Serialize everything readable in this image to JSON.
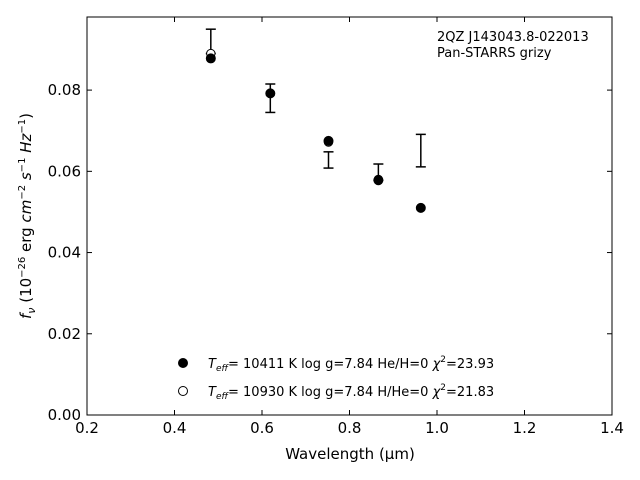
{
  "chart_data": {
    "type": "scatter",
    "xlabel": "Wavelength (μm)",
    "ylabel": "f_ν (10^-26 erg cm^-2 s^-1 Hz^-1)",
    "xlim": [
      0.2,
      1.4
    ],
    "ylim": [
      0.0,
      0.098
    ],
    "xticks": [
      0.2,
      0.4,
      0.6,
      0.8,
      1.0,
      1.2,
      1.4
    ],
    "xtick_labels": [
      "0.2",
      "0.4",
      "0.6",
      "0.8",
      "1.0",
      "1.2",
      "1.4"
    ],
    "yticks": [
      0.0,
      0.02,
      0.04,
      0.06,
      0.08
    ],
    "ytick_labels": [
      "0.00",
      "0.02",
      "0.04",
      "0.06",
      "0.08"
    ],
    "annotation": [
      "2QZ J143043.8-022013",
      "Pan-STARRS grizy"
    ],
    "observed": {
      "x": [
        0.483,
        0.619,
        0.752,
        0.866,
        0.963
      ],
      "y": [
        0.092,
        0.078,
        0.0628,
        0.0598,
        0.0651
      ],
      "yerr": [
        0.003,
        0.0035,
        0.002,
        0.002,
        0.004
      ]
    },
    "series": [
      {
        "name": "T_eff= 10411 K  log g=7.84  He/H=0  χ²=23.93",
        "marker": "filled-circle",
        "x": [
          0.483,
          0.619,
          0.752,
          0.866,
          0.963
        ],
        "y": [
          0.0878,
          0.0792,
          0.0675,
          0.0578,
          0.051
        ]
      },
      {
        "name": "T_eff= 10930 K  log g=7.84  H/He=0  χ²=21.83",
        "marker": "open-circle",
        "x": [
          0.483,
          0.619,
          0.752,
          0.866,
          0.963
        ],
        "y": [
          0.089,
          0.0792,
          0.0672,
          0.058,
          0.051
        ]
      }
    ],
    "legend_entries": [
      {
        "teff": "T",
        "sub": "eff",
        "rest": "= 10411 K  log g=7.84  He/H=0  ",
        "chi": "χ",
        "sup": "2",
        "chi_val": "=23.93"
      },
      {
        "teff": "T",
        "sub": "eff",
        "rest": "= 10930 K  log g=7.84  H/He=0  ",
        "chi": "χ",
        "sup": "2",
        "chi_val": "=21.83"
      }
    ],
    "legend_position": "lower-center",
    "grid": false
  }
}
